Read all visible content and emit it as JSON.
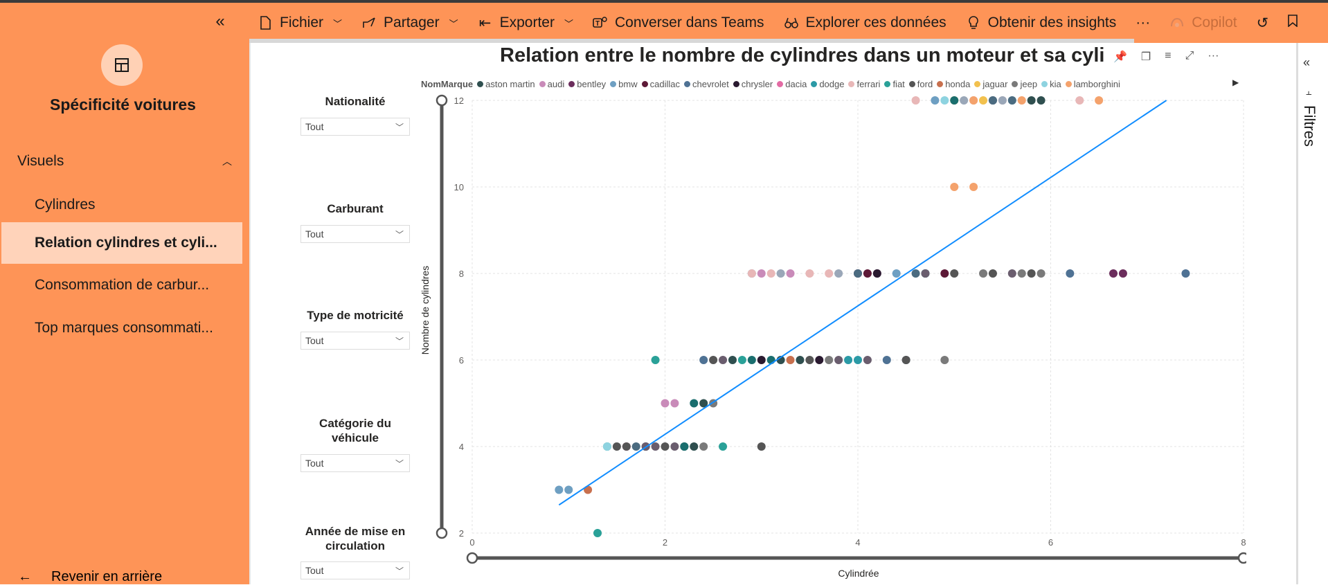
{
  "nav": {
    "collapse_icon": "double-chevron-left-icon",
    "logo_icon": "report-pages-icon",
    "title": "Spécificité voitures",
    "section_label": "Visuels",
    "items": [
      {
        "label": "Cylindres",
        "active": false
      },
      {
        "label": "Relation cylindres et cyli...",
        "active": true
      },
      {
        "label": "Consommation de carbur...",
        "active": false
      },
      {
        "label": "Top marques consommati...",
        "active": false
      }
    ],
    "back_label": "Revenir en arrière"
  },
  "toolbar": {
    "fichier": "Fichier",
    "partager": "Partager",
    "exporter": "Exporter",
    "teams": "Converser dans Teams",
    "explorer": "Explorer ces données",
    "insights": "Obtenir des insights",
    "more": "···",
    "copilot": "Copilot"
  },
  "filters_pane": {
    "label": "Filtres"
  },
  "slicers": [
    {
      "title": "Nationalité",
      "value": "Tout"
    },
    {
      "title": "Carburant",
      "value": "Tout"
    },
    {
      "title": "Type de motricité",
      "value": "Tout"
    },
    {
      "title": "Catégorie du véhicule",
      "value": "Tout"
    },
    {
      "title": "Année de mise en circulation",
      "value": "Tout"
    }
  ],
  "colors": {
    "nav_bg": "#fe9457",
    "nav_active": "#ffd3ba",
    "trend": "#118dff"
  },
  "chart_data": {
    "type": "scatter",
    "title": "Relation entre le nombre de cylindres dans un moteur et sa cyli",
    "xlabel": "Cylindrée",
    "ylabel": "Nombre de cylindres",
    "xlim": [
      0,
      8
    ],
    "ylim": [
      2,
      12
    ],
    "x_ticks": [
      "0",
      "2",
      "4",
      "6",
      "8"
    ],
    "y_ticks": [
      "2",
      "4",
      "6",
      "8",
      "10",
      "12"
    ],
    "grid": true,
    "legend_title": "NomMarque",
    "legend_position": "top",
    "series": [
      {
        "name": "aston martin",
        "color": "#2f4f4f",
        "points": [
          [
            5.9,
            12
          ],
          [
            4.7,
            8
          ]
        ]
      },
      {
        "name": "audi",
        "color": "#c98bb9",
        "points": [
          [
            2.0,
            5
          ],
          [
            2.1,
            5
          ],
          [
            3.0,
            8
          ],
          [
            3.3,
            8
          ],
          [
            4.2,
            8
          ]
        ]
      },
      {
        "name": "bentley",
        "color": "#6b2d5c",
        "points": [
          [
            6.75,
            8
          ],
          [
            6.65,
            8
          ],
          [
            4.0,
            8
          ]
        ]
      },
      {
        "name": "bmw",
        "color": "#6e9fc2",
        "points": [
          [
            0.9,
            3
          ],
          [
            1.0,
            3
          ],
          [
            2.9,
            8
          ],
          [
            4.4,
            8
          ],
          [
            4.8,
            12
          ]
        ]
      },
      {
        "name": "cadillac",
        "color": "#5d1937",
        "points": [
          [
            4.9,
            8
          ],
          [
            4.1,
            8
          ]
        ]
      },
      {
        "name": "chevrolet",
        "color": "#4f7294",
        "points": [
          [
            2.4,
            6
          ],
          [
            4.3,
            6
          ],
          [
            6.2,
            8
          ],
          [
            7.4,
            8
          ],
          [
            4.5,
            6
          ]
        ]
      },
      {
        "name": "chrysler",
        "color": "#2a1a30",
        "points": [
          [
            3.0,
            6
          ],
          [
            3.6,
            6
          ],
          [
            4.2,
            8
          ]
        ]
      },
      {
        "name": "dacia",
        "color": "#e36ba4",
        "points": [
          [
            1.6,
            4
          ]
        ]
      },
      {
        "name": "dodge",
        "color": "#2b9aa6",
        "points": [
          [
            3.9,
            6
          ],
          [
            4.0,
            6
          ],
          [
            4.7,
            8
          ]
        ]
      },
      {
        "name": "ferrari",
        "color": "#e8b7b7",
        "points": [
          [
            2.9,
            8
          ],
          [
            3.1,
            8
          ],
          [
            3.5,
            8
          ],
          [
            3.7,
            8
          ],
          [
            4.6,
            12
          ],
          [
            5.2,
            12
          ],
          [
            5.5,
            12
          ],
          [
            6.3,
            12
          ]
        ]
      },
      {
        "name": "fiat",
        "color": "#2aa198",
        "points": [
          [
            1.3,
            2
          ],
          [
            1.4,
            4
          ],
          [
            1.9,
            6
          ],
          [
            2.6,
            4
          ],
          [
            2.8,
            6
          ]
        ]
      },
      {
        "name": "ford",
        "color": "#555555",
        "points": [
          [
            1.5,
            4
          ],
          [
            1.6,
            4
          ],
          [
            2.0,
            4
          ],
          [
            2.5,
            6
          ],
          [
            3.5,
            6
          ],
          [
            5.0,
            8
          ],
          [
            5.4,
            8
          ],
          [
            5.8,
            8
          ],
          [
            4.5,
            6
          ],
          [
            3.0,
            4
          ]
        ]
      },
      {
        "name": "honda",
        "color": "#c8704e",
        "points": [
          [
            1.2,
            3
          ],
          [
            3.3,
            6
          ]
        ]
      },
      {
        "name": "jaguar",
        "color": "#f2c14e",
        "points": [
          [
            5.0,
            12
          ],
          [
            5.3,
            12
          ]
        ]
      },
      {
        "name": "jeep",
        "color": "#7a7a7a",
        "points": [
          [
            2.4,
            4
          ],
          [
            2.5,
            5
          ],
          [
            3.7,
            6
          ],
          [
            4.9,
            6
          ],
          [
            5.3,
            8
          ],
          [
            5.7,
            8
          ],
          [
            5.9,
            8
          ]
        ]
      },
      {
        "name": "kia",
        "color": "#8ed3e0",
        "points": [
          [
            1.4,
            4
          ],
          [
            4.9,
            12
          ],
          [
            5.6,
            12
          ]
        ]
      },
      {
        "name": "lamborghini",
        "color": "#f4a26c",
        "points": [
          [
            5.0,
            10
          ],
          [
            5.2,
            10
          ],
          [
            5.2,
            12
          ],
          [
            6.5,
            12
          ],
          [
            5.7,
            12
          ]
        ]
      }
    ],
    "extra_points": [
      {
        "color": "#2f4f4f",
        "points": [
          [
            1.8,
            4
          ],
          [
            2.2,
            4
          ],
          [
            2.3,
            4
          ],
          [
            2.7,
            6
          ],
          [
            3.2,
            6
          ],
          [
            3.4,
            6
          ],
          [
            2.4,
            5
          ],
          [
            5.8,
            12
          ]
        ]
      },
      {
        "color": "#6a5d6e",
        "points": [
          [
            1.8,
            4
          ],
          [
            1.9,
            4
          ],
          [
            2.1,
            4
          ],
          [
            2.6,
            6
          ],
          [
            3.8,
            6
          ],
          [
            4.1,
            6
          ],
          [
            5.4,
            12
          ],
          [
            4.7,
            8
          ],
          [
            5.6,
            8
          ]
        ]
      },
      {
        "color": "#1a6e6e",
        "points": [
          [
            2.2,
            4
          ],
          [
            2.3,
            5
          ],
          [
            2.9,
            6
          ],
          [
            3.1,
            6
          ],
          [
            5.0,
            12
          ]
        ]
      },
      {
        "color": "#9aa7b8",
        "points": [
          [
            3.2,
            8
          ],
          [
            3.8,
            8
          ],
          [
            5.1,
            12
          ],
          [
            5.5,
            12
          ],
          [
            5.4,
            12
          ]
        ]
      },
      {
        "color": "#4b6b80",
        "points": [
          [
            5.4,
            12
          ],
          [
            5.6,
            12
          ],
          [
            4.0,
            8
          ],
          [
            4.6,
            8
          ],
          [
            1.7,
            4
          ]
        ]
      }
    ],
    "trendline": {
      "x": [
        0.9,
        7.2
      ],
      "y": [
        2.65,
        12
      ]
    }
  }
}
